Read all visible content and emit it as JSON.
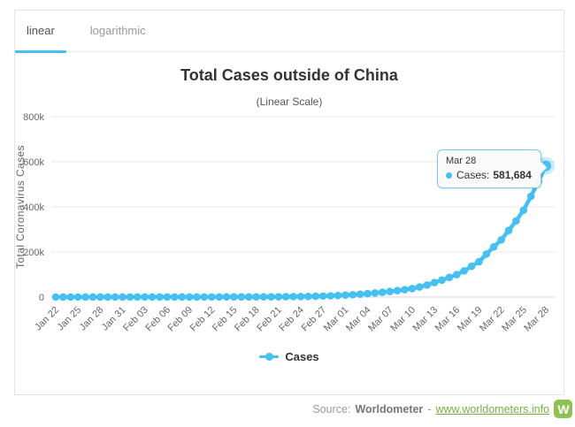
{
  "tabs": {
    "linear": "linear",
    "logarithmic": "logarithmic"
  },
  "chart_data": {
    "type": "line",
    "title": "Total Cases outside of China",
    "subtitle": "(Linear Scale)",
    "xlabel": "",
    "ylabel": "Total Coronavirus Cases",
    "series_name": "Cases",
    "color": "#45c0f0",
    "grid_color": "#e9e9e9",
    "axis_color": "#ccd6eb",
    "grid": true,
    "legend_position": "bottom",
    "ylim": [
      0,
      800000
    ],
    "ytick_values": [
      0,
      200000,
      400000,
      600000,
      800000
    ],
    "ytick_labels": [
      "0",
      "200k",
      "400k",
      "600k",
      "800k"
    ],
    "xtick_every": 3,
    "categories": [
      "Jan 22",
      "Jan 23",
      "Jan 24",
      "Jan 25",
      "Jan 26",
      "Jan 27",
      "Jan 28",
      "Jan 29",
      "Jan 30",
      "Jan 31",
      "Feb 01",
      "Feb 02",
      "Feb 03",
      "Feb 04",
      "Feb 05",
      "Feb 06",
      "Feb 07",
      "Feb 08",
      "Feb 09",
      "Feb 10",
      "Feb 11",
      "Feb 12",
      "Feb 13",
      "Feb 14",
      "Feb 15",
      "Feb 16",
      "Feb 17",
      "Feb 18",
      "Feb 19",
      "Feb 20",
      "Feb 21",
      "Feb 22",
      "Feb 23",
      "Feb 24",
      "Feb 25",
      "Feb 26",
      "Feb 27",
      "Feb 28",
      "Feb 29",
      "Mar 01",
      "Mar 02",
      "Mar 03",
      "Mar 04",
      "Mar 05",
      "Mar 06",
      "Mar 07",
      "Mar 08",
      "Mar 09",
      "Mar 10",
      "Mar 11",
      "Mar 12",
      "Mar 13",
      "Mar 14",
      "Mar 15",
      "Mar 16",
      "Mar 17",
      "Mar 18",
      "Mar 19",
      "Mar 20",
      "Mar 21",
      "Mar 22",
      "Mar 23",
      "Mar 24",
      "Mar 25",
      "Mar 26",
      "Mar 27",
      "Mar 28"
    ],
    "values": [
      9,
      17,
      25,
      40,
      57,
      64,
      87,
      105,
      118,
      153,
      173,
      183,
      188,
      212,
      227,
      265,
      288,
      307,
      319,
      395,
      441,
      456,
      526,
      580,
      602,
      684,
      804,
      880,
      1013,
      1152,
      1403,
      1594,
      1929,
      2251,
      2684,
      3507,
      4440,
      5355,
      6767,
      8559,
      10290,
      12766,
      14906,
      17882,
      21402,
      24731,
      28692,
      32789,
      37568,
      44771,
      53241,
      64415,
      75138,
      86834,
      99556,
      116214,
      136418,
      156653,
      190625,
      222241,
      253406,
      295480,
      337713,
      385149,
      446969,
      512153,
      581684
    ]
  },
  "tooltip": {
    "date": "Mar 28",
    "series_label": "Cases:",
    "value": "581,684"
  },
  "footer": {
    "source_label": "Source:",
    "source_name": "Worldometer",
    "separator": "-",
    "link": "www.worldometers.info",
    "logo": "W"
  }
}
